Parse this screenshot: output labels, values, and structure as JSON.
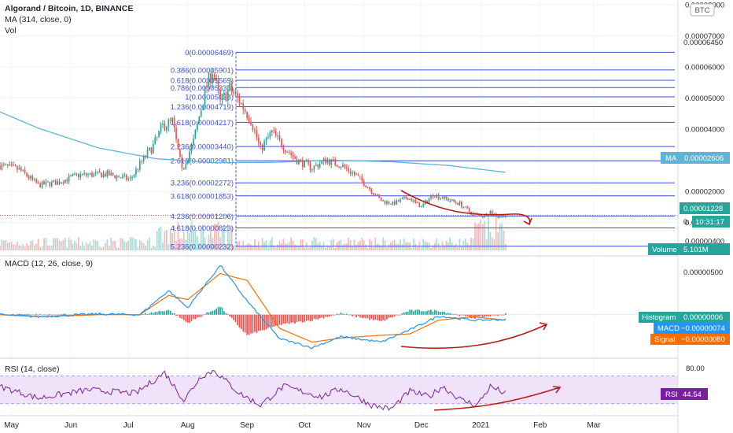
{
  "header": {
    "title": "Algorand / Bitcoin, 1D, BINANCE",
    "ma_label": "MA (314, close, 0)",
    "vol_label": "Vol"
  },
  "currency_badge": "BTC",
  "colors": {
    "up": "#26a69a",
    "down": "#ef5350",
    "ma": "#5fb4d6",
    "fib": "#3d4fd8",
    "macd_line": "#2196f3",
    "signal_line": "#ff6d00",
    "rsi_line": "#7b1fa2",
    "rsi_band": "#ead6f5",
    "annotation": "#b71c1c"
  },
  "price_axis": {
    "labels": [
      "0.00008000",
      "0.00007000",
      "0.00006000",
      "0.00005000",
      "0.00004000",
      "0.00003000",
      "0.00002000",
      "0.00001000",
      "0.00000400"
    ],
    "label_values": [
      8e-05,
      7e-05,
      6e-05,
      5e-05,
      4e-05,
      3e-05,
      2e-05,
      1e-05,
      4e-06
    ]
  },
  "macd_axis": {
    "labels": [
      "0.00000500"
    ]
  },
  "rsi_axis": {
    "labels": [
      "80.00"
    ]
  },
  "time_axis": {
    "labels": [
      "May",
      "Jun",
      "Jul",
      "Aug",
      "Sep",
      "Oct",
      "Nov",
      "Dec",
      "2021",
      "Feb",
      "Mar"
    ]
  },
  "fib_levels": [
    {
      "label": "0(0.00006469)",
      "value": 6.469e-05
    },
    {
      "label": "0.386(0.00005901)",
      "value": 5.901e-05
    },
    {
      "label": "0.618(0.00005569)",
      "value": 5.569e-05
    },
    {
      "label": "0.786(0.00005333)",
      "value": 5.333e-05
    },
    {
      "label": "1(0.00005038)",
      "value": 5.038e-05
    },
    {
      "label": "1.236(0.00004719)",
      "value": 4.719e-05
    },
    {
      "label": "1.618(0.00004217)",
      "value": 4.217e-05
    },
    {
      "label": "2.236(0.00003440)",
      "value": 3.44e-05
    },
    {
      "label": "2.618(0.00002981)",
      "value": 2.981e-05
    },
    {
      "label": "3.236(0.00002272)",
      "value": 2.272e-05
    },
    {
      "label": "3.618(0.00001853)",
      "value": 1.853e-05
    },
    {
      "label": "4.236(0.00001206)",
      "value": 1.206e-05
    },
    {
      "label": "4.618(0.00000823)",
      "value": 8.23e-06
    },
    {
      "label": "5.236(0.00000232)",
      "value": 2.32e-06
    }
  ],
  "axis_tags": {
    "fib_top": "0.00006450",
    "ma": {
      "name": "MA",
      "value": "0.00002606"
    },
    "price": "0.00001228",
    "price_partial": "0.",
    "countdown": "10:31:17",
    "volume": {
      "name": "Volume",
      "value": "5.101M"
    },
    "histogram": {
      "name": "Histogram",
      "value": "0.00000006"
    },
    "macd": {
      "name": "MACD",
      "value": "−0.00000074"
    },
    "signal": {
      "name": "Signal",
      "value": "−0.00000080"
    },
    "rsi": {
      "name": "RSI",
      "value": "44.54"
    }
  },
  "macd_pane": {
    "title": "MACD (12, 26, close, 9)"
  },
  "rsi_pane": {
    "title": "RSI (14, close)"
  },
  "chart_data": {
    "type": "candlestick",
    "symbol": "Algorand / Bitcoin",
    "interval": "1D",
    "exchange": "BINANCE",
    "x_range": [
      "2020-04-25",
      "2021-03-31"
    ],
    "y_range": [
      1e-06,
      8.1e-05
    ],
    "y_scale": "linear",
    "price_anchors": [
      {
        "date": "2020-04-25",
        "close": 2.83e-05
      },
      {
        "date": "2020-05-05",
        "close": 2.7e-05
      },
      {
        "date": "2020-05-15",
        "close": 2.2e-05
      },
      {
        "date": "2020-05-25",
        "close": 2.29e-05
      },
      {
        "date": "2020-06-05",
        "close": 2.52e-05
      },
      {
        "date": "2020-06-20",
        "close": 2.55e-05
      },
      {
        "date": "2020-07-02",
        "close": 2.38e-05
      },
      {
        "date": "2020-07-08",
        "close": 2.96e-05
      },
      {
        "date": "2020-07-14",
        "close": 3.46e-05
      },
      {
        "date": "2020-07-19",
        "close": 4.1e-05
      },
      {
        "date": "2020-07-24",
        "close": 4.25e-05
      },
      {
        "date": "2020-07-29",
        "close": 2.65e-05
      },
      {
        "date": "2020-08-04",
        "close": 3.6e-05
      },
      {
        "date": "2020-08-10",
        "close": 5.2e-05
      },
      {
        "date": "2020-08-14",
        "close": 5.9e-05
      },
      {
        "date": "2020-08-18",
        "close": 4.85e-05
      },
      {
        "date": "2020-08-23",
        "close": 5.3e-05
      },
      {
        "date": "2020-08-28",
        "close": 4.9e-05
      },
      {
        "date": "2020-09-03",
        "close": 4.3e-05
      },
      {
        "date": "2020-09-08",
        "close": 3.35e-05
      },
      {
        "date": "2020-09-14",
        "close": 3.9e-05
      },
      {
        "date": "2020-09-20",
        "close": 3.45e-05
      },
      {
        "date": "2020-09-27",
        "close": 3e-05
      },
      {
        "date": "2020-10-05",
        "close": 2.75e-05
      },
      {
        "date": "2020-10-12",
        "close": 3e-05
      },
      {
        "date": "2020-10-20",
        "close": 2.85e-05
      },
      {
        "date": "2020-10-27",
        "close": 2.55e-05
      },
      {
        "date": "2020-11-03",
        "close": 2.15e-05
      },
      {
        "date": "2020-11-10",
        "close": 1.7e-05
      },
      {
        "date": "2020-11-16",
        "close": 1.6e-05
      },
      {
        "date": "2020-11-24",
        "close": 1.8e-05
      },
      {
        "date": "2020-12-01",
        "close": 1.5e-05
      },
      {
        "date": "2020-12-07",
        "close": 1.9e-05
      },
      {
        "date": "2020-12-14",
        "close": 1.75e-05
      },
      {
        "date": "2020-12-21",
        "close": 1.6e-05
      },
      {
        "date": "2020-12-27",
        "close": 1.3e-05
      },
      {
        "date": "2021-01-02",
        "close": 1.2e-05
      },
      {
        "date": "2021-01-06",
        "close": 1.35e-05
      },
      {
        "date": "2021-01-10",
        "close": 1.18e-05
      },
      {
        "date": "2021-01-14",
        "close": 1.23e-05
      }
    ],
    "ma_anchors": [
      {
        "date": "2020-04-25",
        "value": 4.55e-05
      },
      {
        "date": "2020-05-15",
        "value": 4.03e-05
      },
      {
        "date": "2020-06-15",
        "value": 3.4e-05
      },
      {
        "date": "2020-07-15",
        "value": 3.05e-05
      },
      {
        "date": "2020-08-15",
        "value": 2.92e-05
      },
      {
        "date": "2020-09-15",
        "value": 2.93e-05
      },
      {
        "date": "2020-10-15",
        "value": 3e-05
      },
      {
        "date": "2020-11-15",
        "value": 2.95e-05
      },
      {
        "date": "2020-12-15",
        "value": 2.83e-05
      },
      {
        "date": "2021-01-14",
        "value": 2.61e-05
      }
    ],
    "macd_anchors": [
      {
        "date": "2020-04-25",
        "macd": 0.0,
        "signal": 0.0
      },
      {
        "date": "2020-05-15",
        "macd": -3e-07,
        "signal": -3e-07
      },
      {
        "date": "2020-06-15",
        "macd": 1e-07,
        "signal": 0.0
      },
      {
        "date": "2020-07-07",
        "macd": 0.0,
        "signal": 0.0
      },
      {
        "date": "2020-07-22",
        "macd": 3.5e-06,
        "signal": 2.8e-06
      },
      {
        "date": "2020-08-01",
        "macd": 1e-06,
        "signal": 2.2e-06
      },
      {
        "date": "2020-08-18",
        "macd": 7.2e-06,
        "signal": 6e-06
      },
      {
        "date": "2020-09-01",
        "macd": 2e-06,
        "signal": 5e-06
      },
      {
        "date": "2020-09-18",
        "macd": -3.5e-06,
        "signal": -2e-06
      },
      {
        "date": "2020-10-05",
        "macd": -4.8e-06,
        "signal": -4e-06
      },
      {
        "date": "2020-10-20",
        "macd": -3.2e-06,
        "signal": -3.4e-06
      },
      {
        "date": "2020-11-10",
        "macd": -4e-06,
        "signal": -3e-06
      },
      {
        "date": "2020-11-25",
        "macd": -2.2e-06,
        "signal": -2.8e-06
      },
      {
        "date": "2020-12-10",
        "macd": -2e-07,
        "signal": -8e-07
      },
      {
        "date": "2020-12-28",
        "macd": -8e-07,
        "signal": -3e-07
      },
      {
        "date": "2021-01-14",
        "macd": -7e-07,
        "signal": -8e-07
      }
    ],
    "macd_y_range": [
      -6e-06,
      8e-06
    ],
    "rsi_anchors": [
      {
        "date": "2020-04-25",
        "value": 55
      },
      {
        "date": "2020-05-15",
        "value": 38
      },
      {
        "date": "2020-06-10",
        "value": 50
      },
      {
        "date": "2020-07-05",
        "value": 45
      },
      {
        "date": "2020-07-20",
        "value": 75
      },
      {
        "date": "2020-07-30",
        "value": 35
      },
      {
        "date": "2020-08-08",
        "value": 70
      },
      {
        "date": "2020-08-15",
        "value": 78
      },
      {
        "date": "2020-08-28",
        "value": 45
      },
      {
        "date": "2020-09-08",
        "value": 28
      },
      {
        "date": "2020-09-20",
        "value": 55
      },
      {
        "date": "2020-10-10",
        "value": 40
      },
      {
        "date": "2020-10-20",
        "value": 52
      },
      {
        "date": "2020-11-05",
        "value": 28
      },
      {
        "date": "2020-11-15",
        "value": 22
      },
      {
        "date": "2020-11-25",
        "value": 48
      },
      {
        "date": "2020-12-05",
        "value": 40
      },
      {
        "date": "2020-12-12",
        "value": 55
      },
      {
        "date": "2020-12-22",
        "value": 35
      },
      {
        "date": "2020-12-30",
        "value": 28
      },
      {
        "date": "2021-01-06",
        "value": 55
      },
      {
        "date": "2021-01-14",
        "value": 44.54
      }
    ],
    "rsi_y_range": [
      15,
      90
    ],
    "rsi_band": [
      30,
      70
    ],
    "volume_note": "volume bars overlaid at bottom of price pane"
  }
}
